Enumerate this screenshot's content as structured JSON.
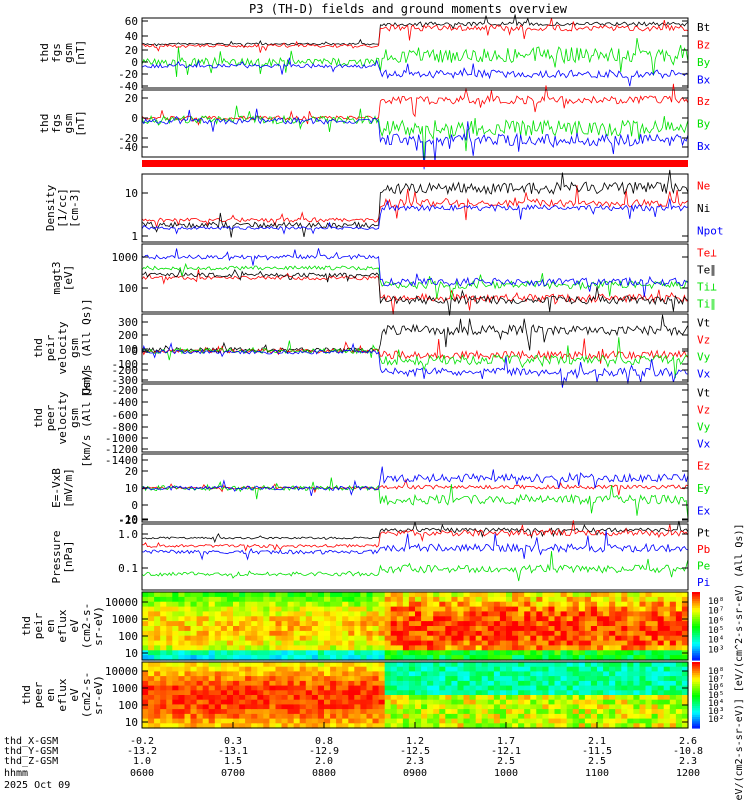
{
  "title": "P3 (TH-D) fields and ground moments overview",
  "colors": {
    "black": "#000000",
    "red": "#ff0000",
    "green": "#00e000",
    "blue": "#0000ff"
  },
  "chart_data": {
    "type": "line",
    "time_axis": {
      "ticks": [
        "0600",
        "0700",
        "0800",
        "0900",
        "1000",
        "1100",
        "1200"
      ],
      "x_label": "hhmm",
      "date": "2025 Oct 09",
      "ephemeris": [
        {
          "label": "thd_X-GSM",
          "values": [
            "-0.2",
            "0.3",
            "0.8",
            "1.2",
            "1.7",
            "2.1",
            "2.6"
          ]
        },
        {
          "label": "thd_Y-GSM",
          "values": [
            "-13.2",
            "-13.1",
            "-12.9",
            "-12.5",
            "-12.1",
            "-11.5",
            "-10.8"
          ]
        },
        {
          "label": "thd_Z-GSM",
          "values": [
            "1.0",
            "1.5",
            "2.0",
            "2.3",
            "2.5",
            "2.5",
            "2.3"
          ]
        }
      ]
    },
    "panels": [
      {
        "id": "fgs_gsm",
        "ylabel": "thd fgs gsm [nT]",
        "scale": "linear",
        "ticks": [
          "60",
          "40",
          "20",
          "0",
          "-20",
          "-40"
        ],
        "legend": [
          {
            "name": "Bt",
            "color": "black"
          },
          {
            "name": "Bz",
            "color": "red"
          },
          {
            "name": "By",
            "color": "green"
          },
          {
            "name": "Bx",
            "color": "blue"
          }
        ]
      },
      {
        "id": "fgm_gsm",
        "ylabel": "thd fgs gsm [nT]",
        "scale": "linear",
        "ticks": [
          "20",
          "0",
          "-20",
          "-40"
        ],
        "legend": [
          {
            "name": "Bz",
            "color": "red"
          },
          {
            "name": "By",
            "color": "green"
          },
          {
            "name": "Bx",
            "color": "blue"
          }
        ]
      },
      {
        "id": "density",
        "ylabel": "Density [1/cc] [cm-3]",
        "scale": "log",
        "ticks": [
          "10",
          "1"
        ],
        "legend": [
          {
            "name": "Ne",
            "color": "red"
          },
          {
            "name": "Ni",
            "color": "black"
          },
          {
            "name": "Npot",
            "color": "blue"
          }
        ]
      },
      {
        "id": "temperature",
        "ylabel": "magt3 [eV]",
        "scale": "log",
        "ticks": [
          "1000",
          "100"
        ],
        "legend": [
          {
            "name": "Te⊥",
            "color": "red"
          },
          {
            "name": "Te∥",
            "color": "black"
          },
          {
            "name": "Ti⊥",
            "color": "green"
          },
          {
            "name": "Ti∥",
            "color": "green"
          }
        ]
      },
      {
        "id": "ion_velocity",
        "ylabel": "thd peir velocity gsm [km/s (All Qs)]",
        "scale": "linear",
        "ticks": [
          "300",
          "200",
          "100",
          "0",
          "-100",
          "-200",
          "-300"
        ],
        "legend": [
          {
            "name": "Vt",
            "color": "black"
          },
          {
            "name": "Vz",
            "color": "red"
          },
          {
            "name": "Vy",
            "color": "green"
          },
          {
            "name": "Vx",
            "color": "blue"
          }
        ]
      },
      {
        "id": "electron_velocity",
        "ylabel": "thd peer velocity gsm [km/s (All Qs)]",
        "scale": "linear",
        "ticks": [
          "-200",
          "-400",
          "-600",
          "-800",
          "-1000",
          "-1200",
          "-1400"
        ],
        "legend": [
          {
            "name": "Vt",
            "color": "black"
          },
          {
            "name": "Vz",
            "color": "red"
          },
          {
            "name": "Vy",
            "color": "green"
          },
          {
            "name": "Vx",
            "color": "blue"
          }
        ]
      },
      {
        "id": "efield",
        "ylabel": "E=-VxB [mV/m]",
        "scale": "linear",
        "ticks": [
          "20",
          "10",
          "0",
          "-10",
          "-20"
        ],
        "legend": [
          {
            "name": "Ez",
            "color": "red"
          },
          {
            "name": "Ey",
            "color": "green"
          },
          {
            "name": "Ex",
            "color": "blue"
          }
        ]
      },
      {
        "id": "pressure",
        "ylabel": "Pressure [nPa]",
        "scale": "log",
        "ticks": [
          "1.0",
          "0.1"
        ],
        "legend": [
          {
            "name": "Pt",
            "color": "black"
          },
          {
            "name": "Pb",
            "color": "red"
          },
          {
            "name": "Pe",
            "color": "green"
          },
          {
            "name": "Pi",
            "color": "blue"
          }
        ]
      },
      {
        "id": "ion_spec",
        "ylabel": "thd peir en eflux eV (cm2-s-sr-eV)",
        "scale": "log",
        "ticks": [
          "10000",
          "1000",
          "100",
          "10"
        ],
        "colorbar_ticks": [
          "10⁸",
          "10⁷",
          "10⁶",
          "10⁵",
          "10⁴",
          "10³"
        ]
      },
      {
        "id": "ele_spec",
        "ylabel": "thd peer en eflux eV (cm2-s-sr-eV)",
        "scale": "log",
        "ticks": [
          "10000",
          "1000",
          "100",
          "10"
        ],
        "colorbar_ticks": [
          "10⁸",
          "10⁷",
          "10⁶",
          "10⁵",
          "10⁴",
          "10³",
          "10²"
        ]
      }
    ],
    "colorbar_label": "[eV/(cm2-s-sr-eV)] [eV/(cm^2-s-sr-eV) (All Qs)]"
  }
}
